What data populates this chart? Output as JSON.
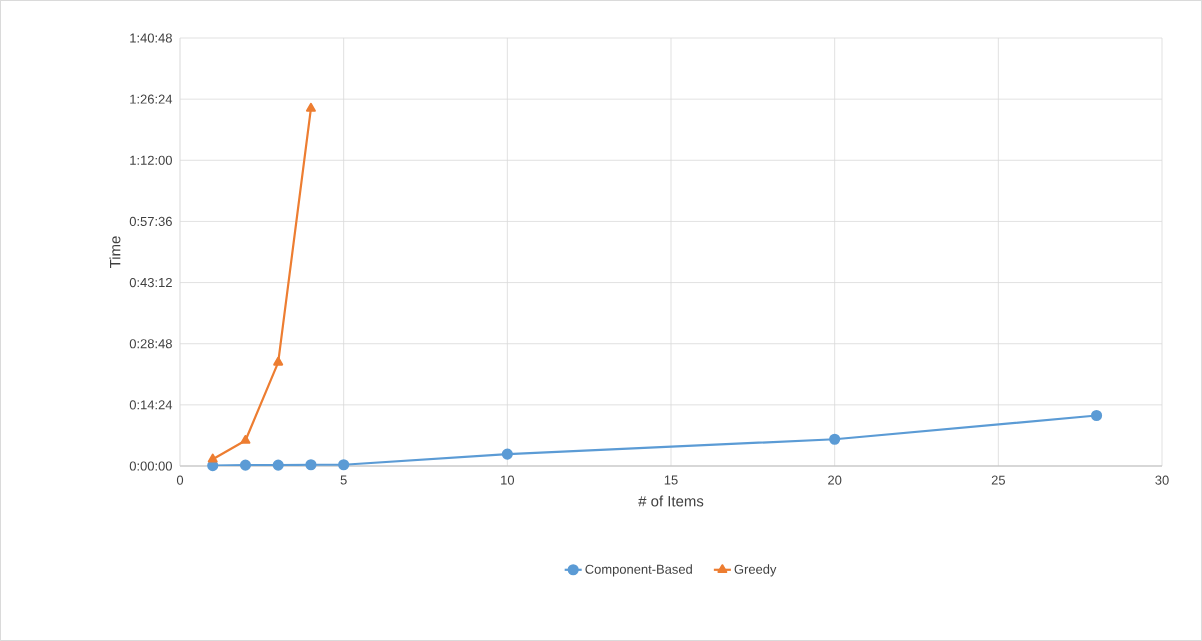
{
  "chart_data": {
    "type": "line",
    "xlabel": "# of Items",
    "ylabel": "Time",
    "xlim": [
      0,
      30
    ],
    "xticks": [
      0,
      5,
      10,
      15,
      20,
      25,
      30
    ],
    "ylim": [
      0,
      100.8
    ],
    "yticks": [
      {
        "value": 0,
        "label": "0:00:00"
      },
      {
        "value": 14.4,
        "label": "0:14:24"
      },
      {
        "value": 28.8,
        "label": "0:28:48"
      },
      {
        "value": 43.2,
        "label": "0:43:12"
      },
      {
        "value": 57.6,
        "label": "0:57:36"
      },
      {
        "value": 72,
        "label": "1:12:00"
      },
      {
        "value": 86.4,
        "label": "1:26:24"
      },
      {
        "value": 100.8,
        "label": "1:40:48"
      }
    ],
    "grid": true,
    "legend": "bottom",
    "series": [
      {
        "name": "Component-Based",
        "color": "#5b9bd5",
        "marker": "circle",
        "x": [
          1,
          2,
          3,
          4,
          5,
          10,
          20,
          28
        ],
        "values": [
          0.1,
          0.2,
          0.2,
          0.3,
          0.3,
          2.8,
          6.3,
          11.9
        ]
      },
      {
        "name": "Greedy",
        "color": "#ed7d31",
        "marker": "triangle",
        "x": [
          1,
          2,
          3,
          4
        ],
        "values": [
          1.6,
          6.0,
          24.4,
          84.2
        ]
      }
    ]
  }
}
